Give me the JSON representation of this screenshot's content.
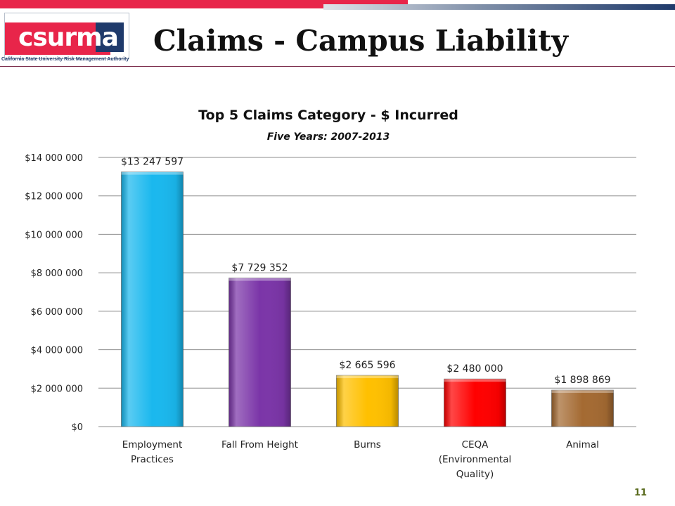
{
  "header": {
    "title": "Claims - Campus Liability",
    "logo_text": "csurma",
    "logo_caption": "California State University Risk Management Authority"
  },
  "page_number": "11",
  "colors": {
    "red_band": "#e8254a",
    "navy": "#1f3a6b"
  },
  "chart_data": {
    "type": "bar",
    "title": "Top 5 Claims Category - $ Incurred",
    "subtitle": "Five Years: 2007-2013",
    "xlabel": "",
    "ylabel": "",
    "categories": [
      [
        "Employment",
        "Practices"
      ],
      [
        "Fall From Height"
      ],
      [
        "Burns"
      ],
      [
        "CEQA",
        "(Environmental",
        "Quality)"
      ],
      [
        "Animal"
      ]
    ],
    "values": [
      13247597,
      7729352,
      2665596,
      2480000,
      1898869
    ],
    "value_labels": [
      "$13 247 597",
      "$7 729 352",
      "$2 665 596",
      "$2 480 000",
      "$1 898 869"
    ],
    "bar_colors": [
      "#1ab8ee",
      "#7b35a8",
      "#ffc000",
      "#ff0000",
      "#a46a32"
    ],
    "ylim": [
      0,
      14000000
    ],
    "yticks": [
      0,
      2000000,
      4000000,
      6000000,
      8000000,
      10000000,
      12000000,
      14000000
    ],
    "ytick_labels": [
      "$0",
      "$2 000 000",
      "$4 000 000",
      "$6 000 000",
      "$8 000 000",
      "$10 000 000",
      "$12 000 000",
      "$14 000 000"
    ],
    "grid": true,
    "legend": "none"
  }
}
